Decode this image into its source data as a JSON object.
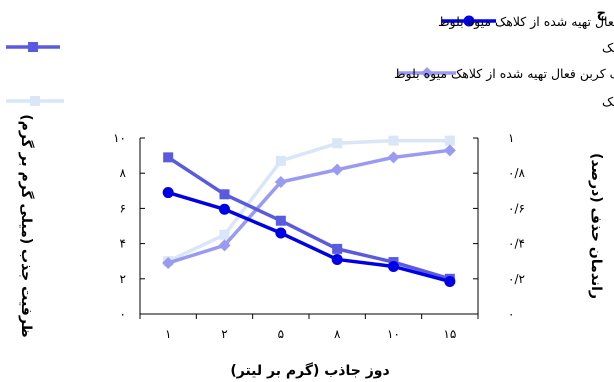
{
  "chart_data": {
    "type": "line",
    "panel_label": "ج",
    "title": "",
    "xlabel": "دوز جاذب (گرم بر لیتر)",
    "ylabel_left": "ظرفیت جذب (میلی گرم بر گرم)",
    "ylabel_right": "راندمان حذف (درصد)",
    "categories": [
      "۱",
      "۲",
      "۵",
      "۸",
      "۱۰",
      "۱۵"
    ],
    "x": [
      1,
      2,
      5,
      8,
      10,
      15
    ],
    "ylim_left": [
      0,
      10
    ],
    "ylim_right": [
      0,
      1
    ],
    "yticks_left": [
      "۰",
      "۲",
      "۴",
      "۶",
      "۸",
      "۱۰"
    ],
    "yticks_right": [
      "۰",
      "۰/۲",
      "۰/۴",
      "۰/۶",
      "۰/۸",
      "۱"
    ],
    "grid": false,
    "legend_position": "top",
    "series": [
      {
        "name": "ظرفیت جذب کربن فعال تهیه شده از کلاهک میوه بلوط",
        "axis": "left",
        "marker": "circle",
        "color": "#0000e6",
        "values": [
          6.9,
          5.95,
          4.6,
          3.1,
          2.7,
          1.85
        ]
      },
      {
        "name": "ظرفیت جذب کربن فعال تهیه شده از کلاهک میوه بلوط و اصلاح شده با نانو ذرات مگنتیک",
        "axis": "left",
        "marker": "square",
        "color": "#5a5ae0",
        "values": [
          8.9,
          6.8,
          5.3,
          3.7,
          2.95,
          2.0
        ]
      },
      {
        "name": "راندمان حذف کربن فعال تهیه شده از کلاهک میوه بلوط",
        "axis": "right",
        "marker": "diamond",
        "color": "#9a9af2",
        "values": [
          0.29,
          0.39,
          0.75,
          0.82,
          0.89,
          0.93
        ]
      },
      {
        "name": "راندمان حذف کربن فعال تهیه شده از کلاهک میوه بلوط و اصلاح شده با نانوذرات مگنتیک",
        "axis": "right",
        "marker": "square",
        "color": "#d8e6f7",
        "values": [
          0.3,
          0.45,
          0.87,
          0.97,
          0.985,
          0.985
        ]
      }
    ]
  }
}
